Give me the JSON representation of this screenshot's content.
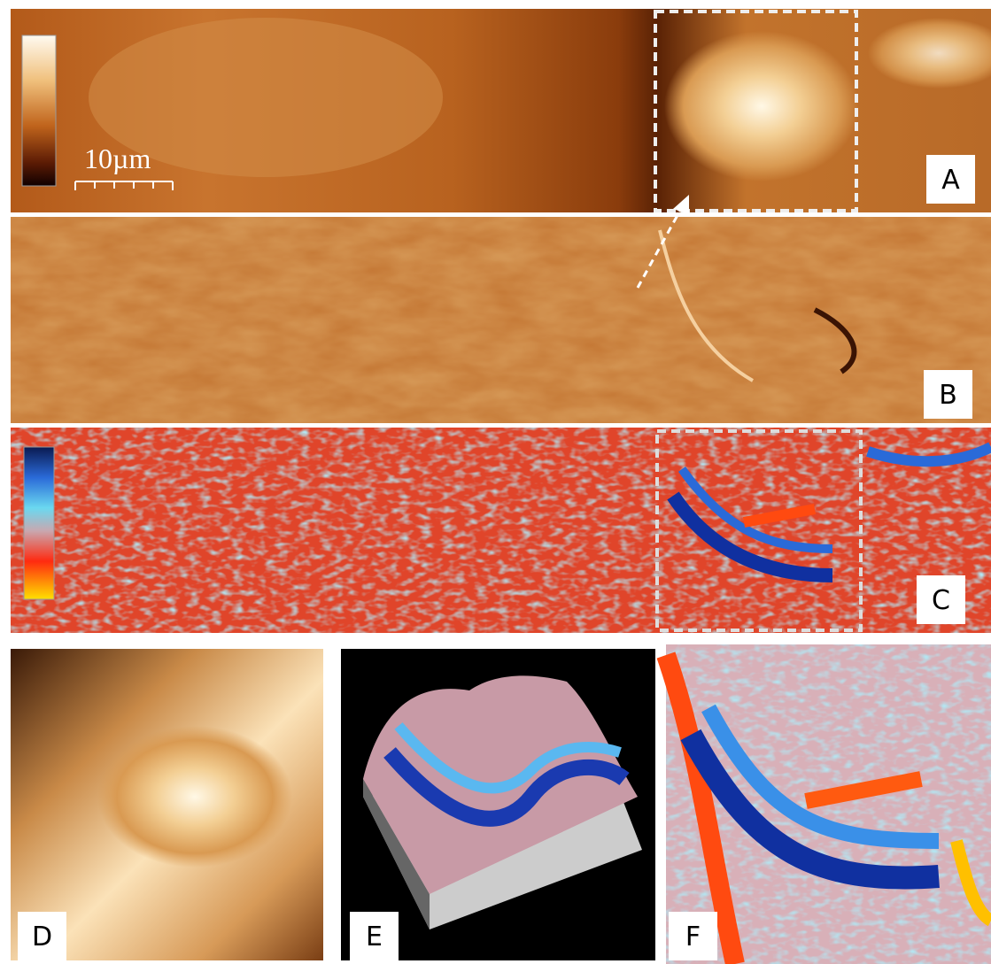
{
  "scale_bar": {
    "label": "10µm"
  },
  "panels": [
    {
      "label": "A"
    },
    {
      "label": "B"
    },
    {
      "label": "C"
    },
    {
      "label": "D"
    },
    {
      "label": "E"
    },
    {
      "label": "F"
    }
  ]
}
